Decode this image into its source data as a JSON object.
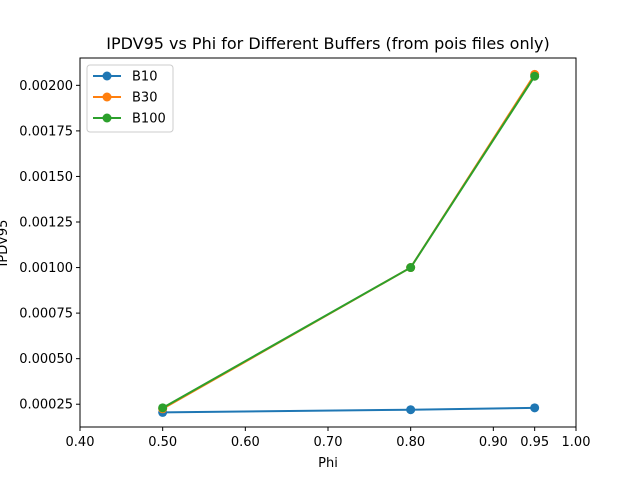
{
  "chart_data": {
    "type": "line",
    "title": "IPDV95 vs Phi for Different Buffers (from pois files only)",
    "xlabel": "Phi",
    "ylabel": "IPDV95",
    "xlim": [
      0.4,
      1.0
    ],
    "ylim": [
      0.000125,
      0.00215
    ],
    "x_ticks": [
      0.4,
      0.5,
      0.6,
      0.7,
      0.8,
      0.9,
      0.95,
      1.0
    ],
    "x_tick_labels": [
      "0.40",
      "0.50",
      "0.60",
      "0.70",
      "0.80",
      "0.90",
      "0.95",
      "1.00"
    ],
    "y_ticks": [
      0.00025,
      0.0005,
      0.00075,
      0.001,
      0.00125,
      0.0015,
      0.00175,
      0.002
    ],
    "y_tick_labels": [
      "0.00025",
      "0.00050",
      "0.00075",
      "0.00100",
      "0.00125",
      "0.00150",
      "0.00175",
      "0.00200"
    ],
    "grid": false,
    "legend_position": "top-left",
    "x": [
      0.5,
      0.8,
      0.95
    ],
    "series": [
      {
        "name": "B10",
        "color": "#1f77b4",
        "values": [
          0.000205,
          0.00022,
          0.00023
        ]
      },
      {
        "name": "B30",
        "color": "#ff7f0e",
        "values": [
          0.000225,
          0.001,
          0.00206
        ]
      },
      {
        "name": "B100",
        "color": "#2ca02c",
        "values": [
          0.00023,
          0.001,
          0.00205
        ]
      }
    ]
  }
}
